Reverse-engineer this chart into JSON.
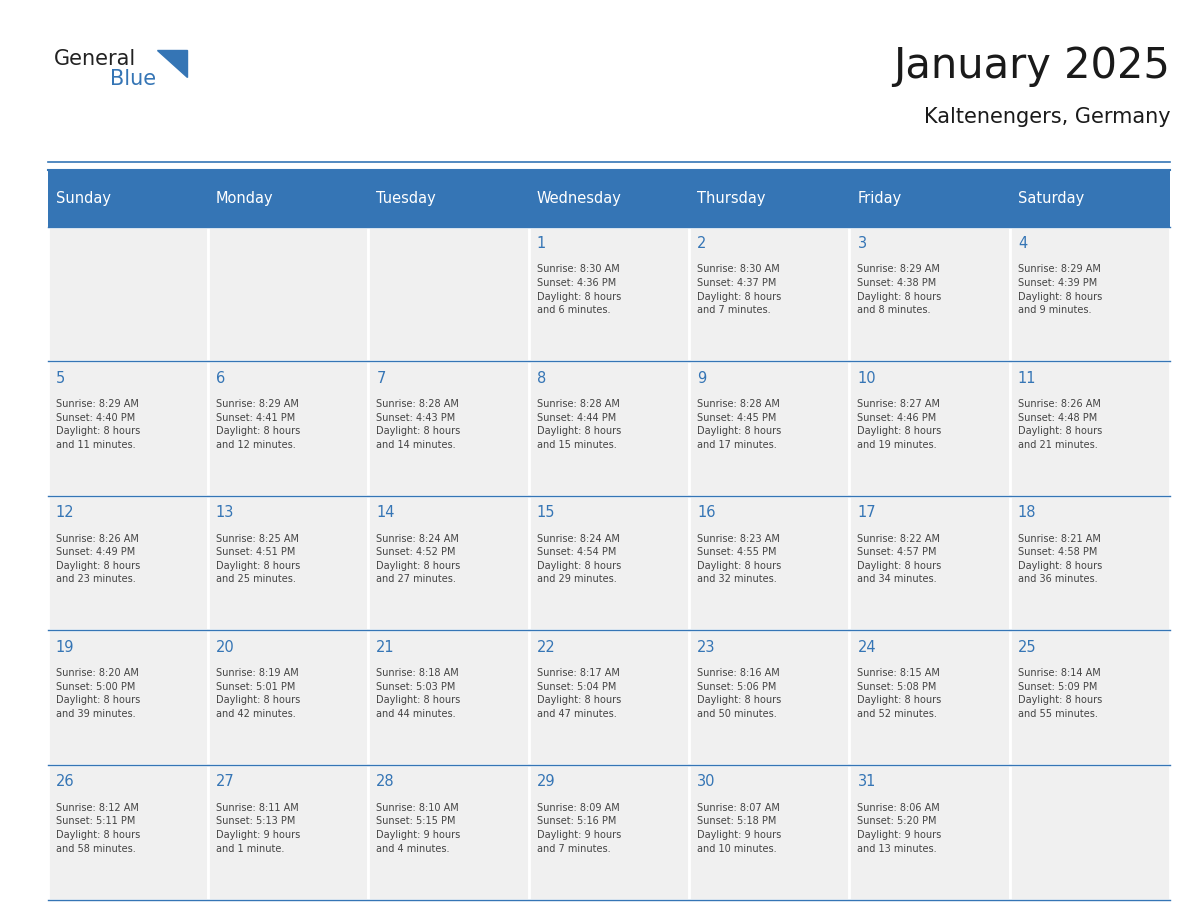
{
  "title": "January 2025",
  "subtitle": "Kaltenengers, Germany",
  "header_bg": "#3575B5",
  "header_text_color": "#FFFFFF",
  "cell_bg_light": "#F0F0F0",
  "day_number_color": "#3575B5",
  "text_color": "#444444",
  "line_color": "#3575B5",
  "days_of_week": [
    "Sunday",
    "Monday",
    "Tuesday",
    "Wednesday",
    "Thursday",
    "Friday",
    "Saturday"
  ],
  "calendar": [
    [
      {
        "day": "",
        "info": ""
      },
      {
        "day": "",
        "info": ""
      },
      {
        "day": "",
        "info": ""
      },
      {
        "day": "1",
        "info": "Sunrise: 8:30 AM\nSunset: 4:36 PM\nDaylight: 8 hours\nand 6 minutes."
      },
      {
        "day": "2",
        "info": "Sunrise: 8:30 AM\nSunset: 4:37 PM\nDaylight: 8 hours\nand 7 minutes."
      },
      {
        "day": "3",
        "info": "Sunrise: 8:29 AM\nSunset: 4:38 PM\nDaylight: 8 hours\nand 8 minutes."
      },
      {
        "day": "4",
        "info": "Sunrise: 8:29 AM\nSunset: 4:39 PM\nDaylight: 8 hours\nand 9 minutes."
      }
    ],
    [
      {
        "day": "5",
        "info": "Sunrise: 8:29 AM\nSunset: 4:40 PM\nDaylight: 8 hours\nand 11 minutes."
      },
      {
        "day": "6",
        "info": "Sunrise: 8:29 AM\nSunset: 4:41 PM\nDaylight: 8 hours\nand 12 minutes."
      },
      {
        "day": "7",
        "info": "Sunrise: 8:28 AM\nSunset: 4:43 PM\nDaylight: 8 hours\nand 14 minutes."
      },
      {
        "day": "8",
        "info": "Sunrise: 8:28 AM\nSunset: 4:44 PM\nDaylight: 8 hours\nand 15 minutes."
      },
      {
        "day": "9",
        "info": "Sunrise: 8:28 AM\nSunset: 4:45 PM\nDaylight: 8 hours\nand 17 minutes."
      },
      {
        "day": "10",
        "info": "Sunrise: 8:27 AM\nSunset: 4:46 PM\nDaylight: 8 hours\nand 19 minutes."
      },
      {
        "day": "11",
        "info": "Sunrise: 8:26 AM\nSunset: 4:48 PM\nDaylight: 8 hours\nand 21 minutes."
      }
    ],
    [
      {
        "day": "12",
        "info": "Sunrise: 8:26 AM\nSunset: 4:49 PM\nDaylight: 8 hours\nand 23 minutes."
      },
      {
        "day": "13",
        "info": "Sunrise: 8:25 AM\nSunset: 4:51 PM\nDaylight: 8 hours\nand 25 minutes."
      },
      {
        "day": "14",
        "info": "Sunrise: 8:24 AM\nSunset: 4:52 PM\nDaylight: 8 hours\nand 27 minutes."
      },
      {
        "day": "15",
        "info": "Sunrise: 8:24 AM\nSunset: 4:54 PM\nDaylight: 8 hours\nand 29 minutes."
      },
      {
        "day": "16",
        "info": "Sunrise: 8:23 AM\nSunset: 4:55 PM\nDaylight: 8 hours\nand 32 minutes."
      },
      {
        "day": "17",
        "info": "Sunrise: 8:22 AM\nSunset: 4:57 PM\nDaylight: 8 hours\nand 34 minutes."
      },
      {
        "day": "18",
        "info": "Sunrise: 8:21 AM\nSunset: 4:58 PM\nDaylight: 8 hours\nand 36 minutes."
      }
    ],
    [
      {
        "day": "19",
        "info": "Sunrise: 8:20 AM\nSunset: 5:00 PM\nDaylight: 8 hours\nand 39 minutes."
      },
      {
        "day": "20",
        "info": "Sunrise: 8:19 AM\nSunset: 5:01 PM\nDaylight: 8 hours\nand 42 minutes."
      },
      {
        "day": "21",
        "info": "Sunrise: 8:18 AM\nSunset: 5:03 PM\nDaylight: 8 hours\nand 44 minutes."
      },
      {
        "day": "22",
        "info": "Sunrise: 8:17 AM\nSunset: 5:04 PM\nDaylight: 8 hours\nand 47 minutes."
      },
      {
        "day": "23",
        "info": "Sunrise: 8:16 AM\nSunset: 5:06 PM\nDaylight: 8 hours\nand 50 minutes."
      },
      {
        "day": "24",
        "info": "Sunrise: 8:15 AM\nSunset: 5:08 PM\nDaylight: 8 hours\nand 52 minutes."
      },
      {
        "day": "25",
        "info": "Sunrise: 8:14 AM\nSunset: 5:09 PM\nDaylight: 8 hours\nand 55 minutes."
      }
    ],
    [
      {
        "day": "26",
        "info": "Sunrise: 8:12 AM\nSunset: 5:11 PM\nDaylight: 8 hours\nand 58 minutes."
      },
      {
        "day": "27",
        "info": "Sunrise: 8:11 AM\nSunset: 5:13 PM\nDaylight: 9 hours\nand 1 minute."
      },
      {
        "day": "28",
        "info": "Sunrise: 8:10 AM\nSunset: 5:15 PM\nDaylight: 9 hours\nand 4 minutes."
      },
      {
        "day": "29",
        "info": "Sunrise: 8:09 AM\nSunset: 5:16 PM\nDaylight: 9 hours\nand 7 minutes."
      },
      {
        "day": "30",
        "info": "Sunrise: 8:07 AM\nSunset: 5:18 PM\nDaylight: 9 hours\nand 10 minutes."
      },
      {
        "day": "31",
        "info": "Sunrise: 8:06 AM\nSunset: 5:20 PM\nDaylight: 9 hours\nand 13 minutes."
      },
      {
        "day": "",
        "info": ""
      }
    ]
  ],
  "logo_general_color": "#222222",
  "logo_blue_color": "#3575B5"
}
